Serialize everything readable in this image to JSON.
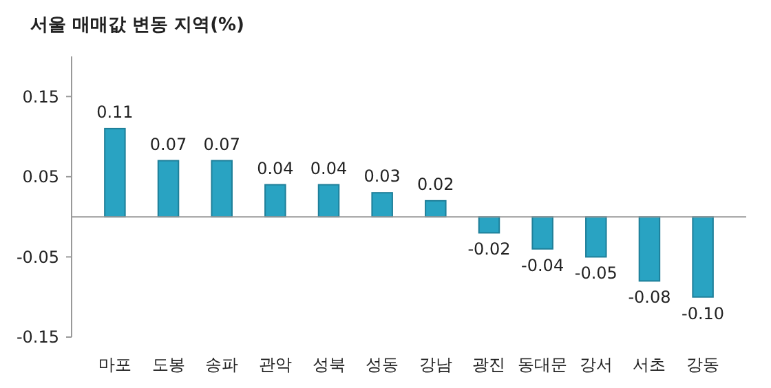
{
  "chart_data": {
    "type": "bar",
    "title": "서울 매매값 변동 지역(%)",
    "categories": [
      "마포",
      "도봉",
      "송파",
      "관악",
      "성북",
      "성동",
      "강남",
      "광진",
      "동대문",
      "강서",
      "서초",
      "강동"
    ],
    "values": [
      0.11,
      0.07,
      0.07,
      0.04,
      0.04,
      0.03,
      0.02,
      -0.02,
      -0.04,
      -0.05,
      -0.08,
      -0.1
    ],
    "color": "#29a3c2",
    "ylim": [
      -0.15,
      0.2
    ],
    "yticks": [
      -0.15,
      -0.05,
      0.05,
      0.15
    ],
    "value_labels": [
      "0.11",
      "0.07",
      "0.07",
      "0.04",
      "0.04",
      "0.03",
      "0.02",
      "-0.02",
      "-0.04",
      "-0.05",
      "-0.08",
      "-0.10"
    ]
  }
}
